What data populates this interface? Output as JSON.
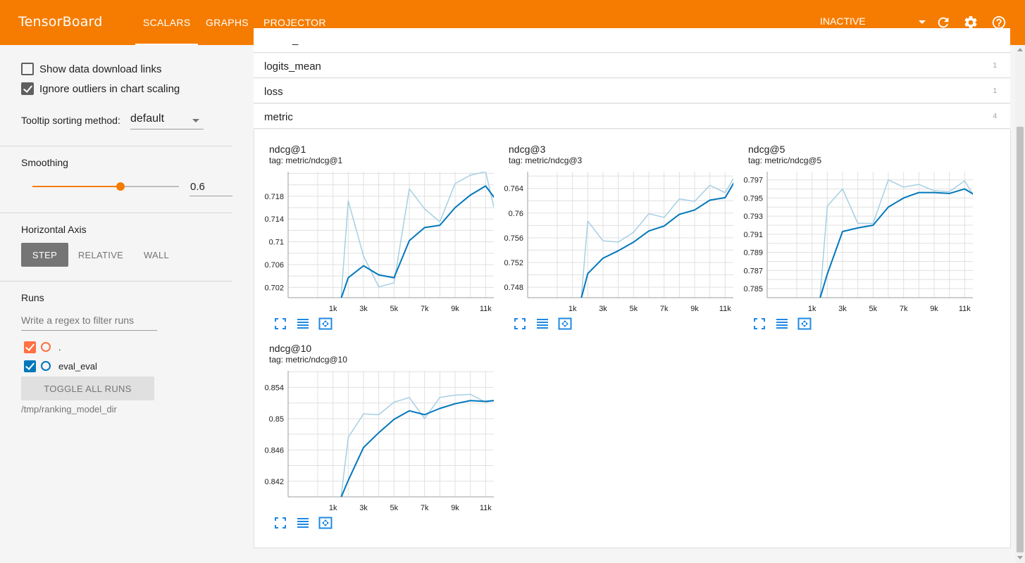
{
  "header": {
    "brand": "TensorBoard",
    "tabs": [
      {
        "label": "SCALARS",
        "active": true
      },
      {
        "label": "GRAPHS",
        "active": false
      },
      {
        "label": "PROJECTOR",
        "active": false
      }
    ],
    "run_selector": "INACTIVE",
    "icons": [
      "refresh-icon",
      "settings-gear-icon",
      "help-icon"
    ],
    "accent_color": "#f57c00"
  },
  "sidebar": {
    "show_download_links": {
      "label": "Show data download links",
      "checked": false
    },
    "ignore_outliers": {
      "label": "Ignore outliers in chart scaling",
      "checked": true
    },
    "tooltip_sorting": {
      "label": "Tooltip sorting method:",
      "value": "default"
    },
    "smoothing": {
      "label": "Smoothing",
      "value": "0.6",
      "fraction": 0.6
    },
    "horizontal_axis": {
      "label": "Horizontal Axis",
      "options": [
        {
          "label": "STEP",
          "active": true
        },
        {
          "label": "RELATIVE",
          "active": false
        },
        {
          "label": "WALL",
          "active": false
        }
      ]
    },
    "runs": {
      "label": "Runs",
      "filter_placeholder": "Write a regex to filter runs",
      "items": [
        {
          "label": ".",
          "checked": true,
          "color": "#ff7043"
        },
        {
          "label": "eval_eval",
          "checked": true,
          "color": "#0077bb"
        }
      ],
      "toggle_all_label": "TOGGLE ALL RUNS",
      "logdir": "/tmp/ranking_model_dir"
    }
  },
  "main": {
    "partial_group_label": "_",
    "groups": [
      {
        "name": "logits_mean",
        "count": "1"
      },
      {
        "name": "loss",
        "count": "1"
      },
      {
        "name": "metric",
        "count": "4"
      }
    ]
  },
  "chart_data": [
    {
      "type": "line",
      "title": "ndcg@1",
      "subtitle": "tag: metric/ndcg@1",
      "xticks": [
        "1k",
        "3k",
        "5k",
        "7k",
        "9k",
        "11k"
      ],
      "yticks": [
        "0.702",
        "0.706",
        "0.71",
        "0.714",
        "0.718"
      ],
      "xlim": [
        0,
        12000
      ],
      "ylim": [
        0.7002,
        0.7223
      ],
      "series": [
        {
          "style": "raw",
          "color": "#a6cfe3",
          "x": [
            1500,
            2000,
            3000,
            4000,
            5000,
            6000,
            7000,
            8000,
            9000,
            10000,
            11000,
            12000
          ],
          "y": [
            0.699,
            0.7172,
            0.7075,
            0.7021,
            0.7028,
            0.7193,
            0.7158,
            0.7135,
            0.7202,
            0.7217,
            0.7223,
            0.7108
          ]
        },
        {
          "style": "smoothed",
          "color": "#0077bb",
          "x": [
            1500,
            2000,
            3000,
            4000,
            5000,
            6000,
            7000,
            8000,
            9000,
            10000,
            11000,
            12000
          ],
          "y": [
            0.6998,
            0.7037,
            0.7058,
            0.7042,
            0.7037,
            0.7102,
            0.7125,
            0.7129,
            0.716,
            0.7182,
            0.7198,
            0.7162
          ]
        }
      ]
    },
    {
      "type": "line",
      "title": "ndcg@3",
      "subtitle": "tag: metric/ndcg@3",
      "xticks": [
        "1k",
        "3k",
        "5k",
        "7k",
        "9k",
        "11k"
      ],
      "yticks": [
        "0.748",
        "0.752",
        "0.756",
        "0.76",
        "0.764"
      ],
      "xlim": [
        0,
        12000
      ],
      "ylim": [
        0.7463,
        0.7667
      ],
      "series": [
        {
          "style": "raw",
          "color": "#a6cfe3",
          "x": [
            1500,
            2000,
            3000,
            4000,
            5000,
            6000,
            7000,
            8000,
            9000,
            10000,
            11000,
            12000
          ],
          "y": [
            0.744,
            0.7587,
            0.7555,
            0.7553,
            0.7569,
            0.7599,
            0.7593,
            0.7623,
            0.7619,
            0.7645,
            0.7633,
            0.7675
          ]
        },
        {
          "style": "smoothed",
          "color": "#0077bb",
          "x": [
            1500,
            2000,
            3000,
            4000,
            5000,
            6000,
            7000,
            8000,
            9000,
            10000,
            11000,
            12000
          ],
          "y": [
            0.7455,
            0.7502,
            0.7527,
            0.7539,
            0.7553,
            0.7571,
            0.7579,
            0.7598,
            0.7605,
            0.7621,
            0.7625,
            0.7667
          ]
        }
      ]
    },
    {
      "type": "line",
      "title": "ndcg@5",
      "subtitle": "tag: metric/ndcg@5",
      "xticks": [
        "1k",
        "3k",
        "5k",
        "7k",
        "9k",
        "11k"
      ],
      "yticks": [
        "0.785",
        "0.787",
        "0.789",
        "0.791",
        "0.793",
        "0.795",
        "0.797"
      ],
      "xlim": [
        0,
        12000
      ],
      "ylim": [
        0.784,
        0.7979
      ],
      "series": [
        {
          "style": "raw",
          "color": "#a6cfe3",
          "x": [
            1500,
            2000,
            3000,
            4000,
            5000,
            6000,
            7000,
            8000,
            9000,
            10000,
            11000,
            11500,
            12000
          ],
          "y": [
            0.7835,
            0.7941,
            0.796,
            0.7922,
            0.7922,
            0.797,
            0.7962,
            0.7965,
            0.7958,
            0.7957,
            0.7969,
            0.7955,
            0.7934
          ]
        },
        {
          "style": "smoothed",
          "color": "#0077bb",
          "x": [
            1500,
            2000,
            3000,
            4000,
            5000,
            6000,
            7000,
            8000,
            9000,
            10000,
            11000,
            12000
          ],
          "y": [
            0.7838,
            0.7866,
            0.7913,
            0.7917,
            0.792,
            0.794,
            0.795,
            0.7956,
            0.7956,
            0.7955,
            0.796,
            0.795
          ]
        }
      ]
    },
    {
      "type": "line",
      "title": "ndcg@10",
      "subtitle": "tag: metric/ndcg@10",
      "xticks": [
        "1k",
        "3k",
        "5k",
        "7k",
        "9k",
        "11k"
      ],
      "yticks": [
        "0.842",
        "0.846",
        "0.85",
        "0.854"
      ],
      "xlim": [
        0,
        12000
      ],
      "ylim": [
        0.84,
        0.8561
      ],
      "series": [
        {
          "style": "raw",
          "color": "#a6cfe3",
          "x": [
            1500,
            2000,
            3000,
            4000,
            5000,
            6000,
            7000,
            8000,
            9000,
            10000,
            11000,
            12000
          ],
          "y": [
            0.8395,
            0.8476,
            0.8506,
            0.8505,
            0.8521,
            0.8527,
            0.85,
            0.8527,
            0.853,
            0.8531,
            0.8521,
            0.8524
          ]
        },
        {
          "style": "smoothed",
          "color": "#0077bb",
          "x": [
            1500,
            2000,
            3000,
            4000,
            5000,
            6000,
            7000,
            8000,
            9000,
            10000,
            11000,
            12000
          ],
          "y": [
            0.8398,
            0.8421,
            0.8463,
            0.8482,
            0.8499,
            0.851,
            0.8505,
            0.8513,
            0.8519,
            0.8523,
            0.8522,
            0.8524
          ]
        }
      ]
    }
  ]
}
